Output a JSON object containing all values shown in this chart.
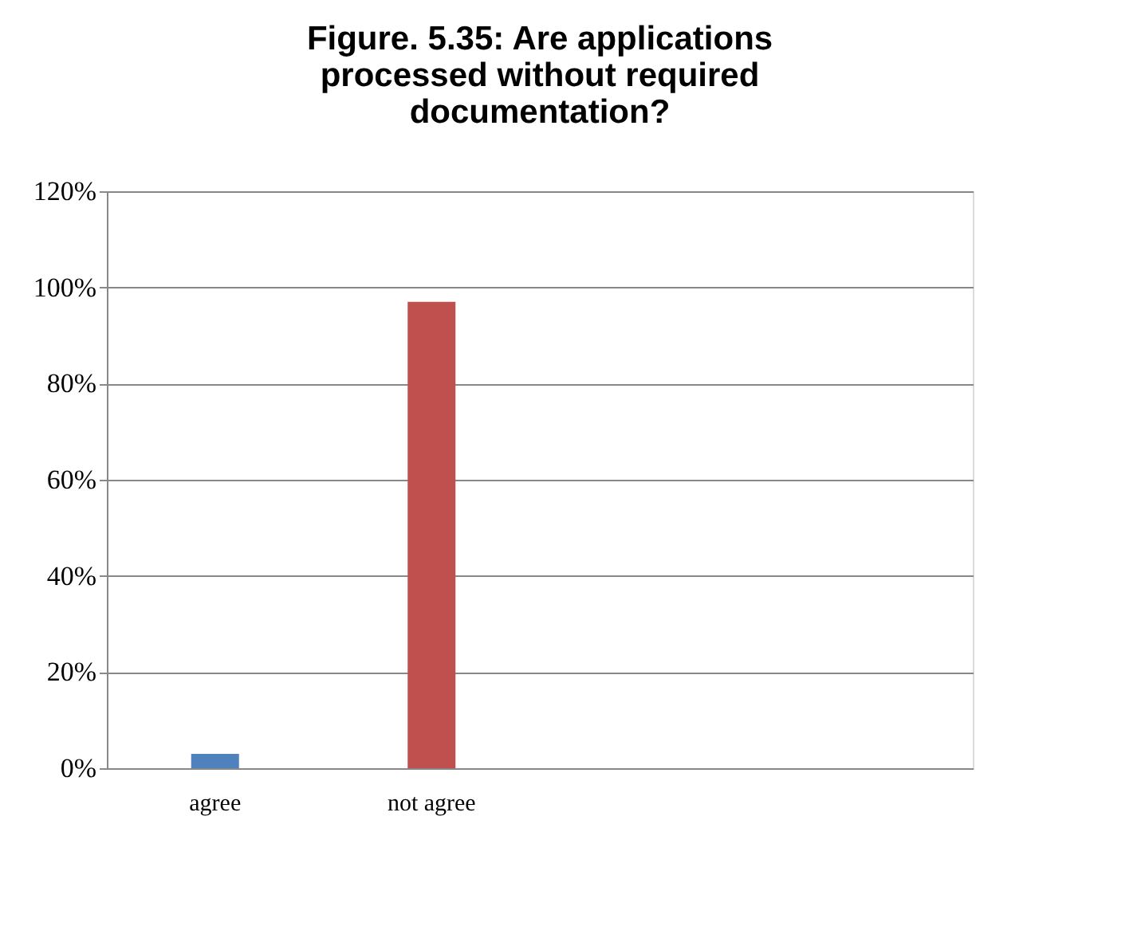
{
  "chart_data": {
    "type": "bar",
    "title": "Figure. 5.35:  Are applications processed without required documentation?",
    "categories": [
      "agree",
      "not agree",
      null,
      null
    ],
    "values": [
      3,
      97,
      null,
      null
    ],
    "colors": [
      "#4f81bd",
      "#c0504d",
      "#4f81bd",
      "#c0504d"
    ],
    "ylim": [
      0,
      120
    ],
    "yticks": [
      {
        "value": 0,
        "label": "0%"
      },
      {
        "value": 20,
        "label": "20%"
      },
      {
        "value": 40,
        "label": "40%"
      },
      {
        "value": 60,
        "label": "60%"
      },
      {
        "value": 80,
        "label": "80%"
      },
      {
        "value": 100,
        "label": "100%"
      },
      {
        "value": 120,
        "label": "120%"
      }
    ],
    "grid": "y",
    "legend": false
  }
}
